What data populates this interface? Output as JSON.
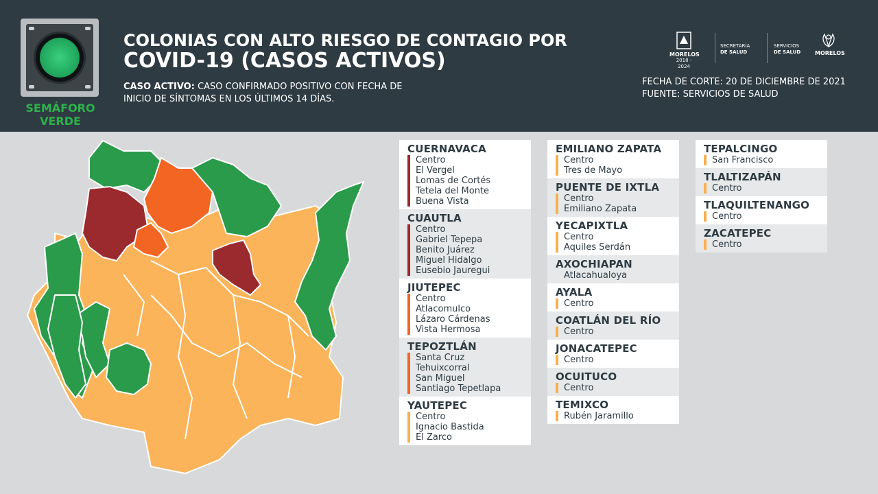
{
  "semaforo": {
    "line1": "SEMÁFORO",
    "line2": "VERDE"
  },
  "title": {
    "line1": "COLONIAS CON ALTO RIESGO DE CONTAGIO POR",
    "line2": "COVID-19 (CASOS ACTIVOS)"
  },
  "definition": {
    "label": "CASO ACTIVO:",
    "text": " CASO CONFIRMADO POSITIVO CON FECHA DE",
    "text2": "INICIO DE SÍNTOMAS EN LOS ÚLTIMOS 14 DÍAS."
  },
  "logos": {
    "morelos": "MORELOS",
    "morelos_sub": "2018 - 2024",
    "secretaria_1": "SECRETARÍA",
    "secretaria_2": "DE SALUD",
    "servicios_1": "SERVICIOS",
    "servicios_2": "DE SALUD",
    "morelos2": "MORELOS"
  },
  "fecha": {
    "line1": "FECHA DE CORTE: 20 DE DICIEMBRE DE 2021",
    "line2": "FUENTE: SERVICIOS DE SALUD"
  },
  "colors": {
    "green": "#2a9b4a",
    "yellow": "#fbb45a",
    "orange": "#f26522",
    "red": "#9b2a2e",
    "header": "#2e3b43"
  },
  "col1": [
    {
      "name": "CUERNAVACA",
      "risk": "red",
      "bg": "white",
      "colonias": [
        "Centro",
        "El Vergel",
        "Lomas de Cortés",
        "Tetela del Monte",
        "Buena Vista"
      ]
    },
    {
      "name": "CUAUTLA",
      "risk": "red",
      "bg": "grey",
      "colonias": [
        "Centro",
        "Gabriel Tepepa",
        "Benito Juárez",
        "Miguel Hidalgo",
        "Eusebio Jauregui"
      ]
    },
    {
      "name": "JIUTEPEC",
      "risk": "orange",
      "bg": "white",
      "colonias": [
        "Centro",
        "Atlacomulco",
        "Lázaro Cárdenas",
        "Vista Hermosa"
      ]
    },
    {
      "name": "TEPOZTLÁN",
      "risk": "orange",
      "bg": "grey",
      "colonias": [
        "Santa Cruz",
        "Tehuixcorral",
        "San Miguel",
        "Santiago Tepetlapa"
      ]
    },
    {
      "name": "YAUTEPEC",
      "risk": "yellow",
      "bg": "white",
      "colonias": [
        "Centro",
        "Ignacio Bastida",
        "El Zarco"
      ]
    }
  ],
  "col2": [
    {
      "name": "EMILIANO ZAPATA",
      "risk": "yellow",
      "bg": "white",
      "colonias": [
        "Centro",
        "Tres de Mayo"
      ]
    },
    {
      "name": "PUENTE DE IXTLA",
      "risk": "yellow",
      "bg": "grey",
      "colonias": [
        "Centro",
        "Emiliano Zapata"
      ]
    },
    {
      "name": "YECAPIXTLA",
      "risk": "yellow",
      "bg": "white",
      "colonias": [
        "Centro",
        "Aquiles Serdán"
      ]
    },
    {
      "name": "AXOCHIAPAN",
      "risk": "yellow",
      "bg": "grey",
      "colonias": [
        "Atlacahualoya"
      ]
    },
    {
      "name": "AYALA",
      "risk": "yellow",
      "bg": "white",
      "colonias": [
        "Centro"
      ]
    },
    {
      "name": "COATLÁN DEL RÍO",
      "risk": "yellow",
      "bg": "grey",
      "colonias": [
        "Centro"
      ]
    },
    {
      "name": "JONACATEPEC",
      "risk": "yellow",
      "bg": "white",
      "colonias": [
        "Centro"
      ]
    },
    {
      "name": "OCUITUCO",
      "risk": "yellow",
      "bg": "grey",
      "colonias": [
        "Centro"
      ]
    },
    {
      "name": "TEMIXCO",
      "risk": "yellow",
      "bg": "white",
      "colonias": [
        "Rubén Jaramillo"
      ]
    }
  ],
  "col3": [
    {
      "name": "TEPALCINGO",
      "risk": "yellow",
      "bg": "white",
      "colonias": [
        "San Francisco"
      ]
    },
    {
      "name": "TLALTIZAPÁN",
      "risk": "yellow",
      "bg": "grey",
      "colonias": [
        "Centro"
      ]
    },
    {
      "name": "TLAQUILTENANGO",
      "risk": "yellow",
      "bg": "white",
      "colonias": [
        "Centro"
      ]
    },
    {
      "name": "ZACATEPEC",
      "risk": "yellow",
      "bg": "grey",
      "colonias": [
        "Centro"
      ]
    }
  ]
}
